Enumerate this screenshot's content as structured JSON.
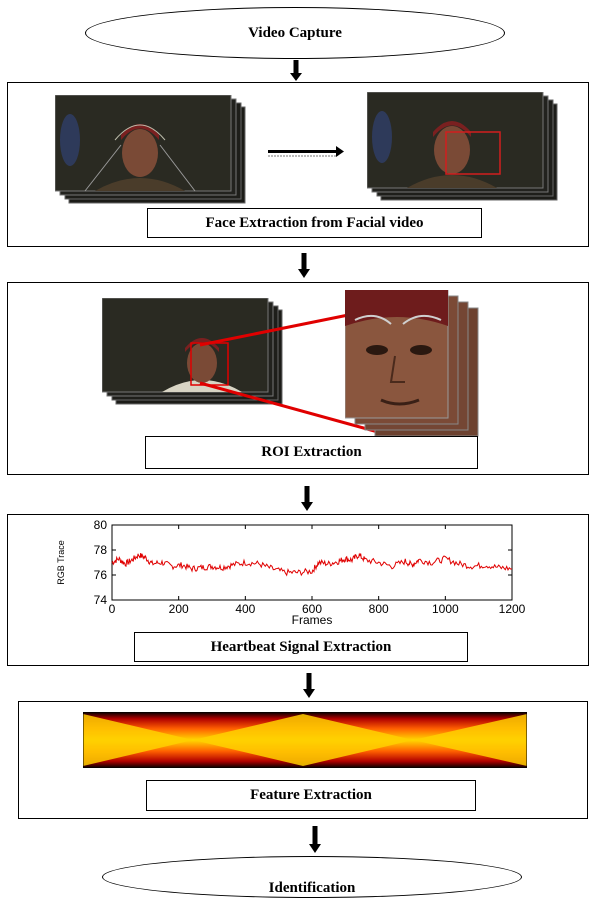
{
  "stages": {
    "start": "Video Capture",
    "face": "Face Extraction from Facial video",
    "roi": "ROI Extraction",
    "heartbeat": "Heartbeat Signal Extraction",
    "feature": "Feature Extraction",
    "end": "Identification"
  },
  "colors": {
    "signal": "#e00000",
    "face_box": "#d21e1e",
    "frame_dark": "#2a2a22",
    "skin": "#7a4a36"
  },
  "chart_data": {
    "type": "line",
    "title": "",
    "xlabel": "Frames",
    "ylabel": "RGB Trace",
    "xlim": [
      0,
      1200
    ],
    "ylim": [
      74,
      80
    ],
    "xticks": [
      "0",
      "200",
      "400",
      "600",
      "800",
      "1000",
      "1200"
    ],
    "yticks": [
      "74",
      "76",
      "78",
      "80"
    ],
    "series": [
      {
        "x": [
          0,
          20,
          40,
          60,
          80,
          100,
          120,
          150,
          180,
          210,
          240,
          270,
          300,
          330,
          360,
          400,
          440,
          480,
          520,
          560,
          600,
          620,
          650,
          680,
          700,
          720,
          740,
          760,
          800,
          840,
          880,
          900,
          920,
          960,
          1000,
          1040,
          1080,
          1120,
          1160,
          1200
        ],
        "values": [
          77.0,
          77.3,
          76.9,
          77.2,
          77.6,
          77.4,
          76.9,
          77.0,
          76.7,
          76.8,
          76.5,
          76.6,
          76.7,
          76.6,
          76.8,
          77.0,
          76.9,
          76.5,
          76.2,
          76.2,
          76.3,
          77.0,
          76.9,
          77.1,
          77.3,
          77.2,
          77.6,
          77.2,
          77.0,
          76.7,
          77.1,
          76.8,
          77.2,
          77.0,
          77.3,
          76.9,
          76.7,
          76.8,
          76.6,
          76.5
        ]
      }
    ]
  }
}
